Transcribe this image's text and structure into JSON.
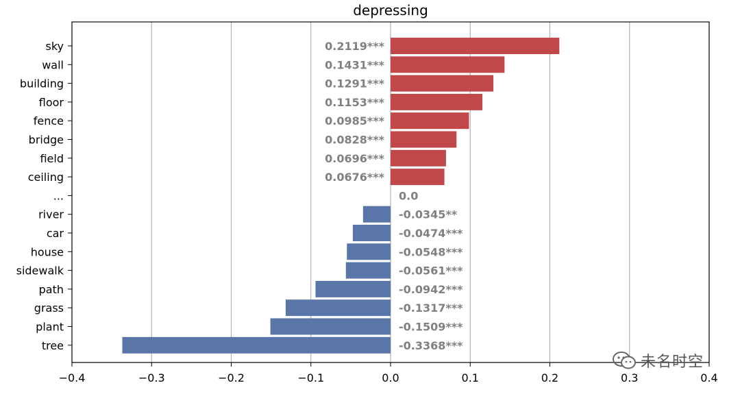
{
  "chart_data": {
    "type": "bar",
    "orientation": "horizontal",
    "title": "depressing",
    "xlabel": "",
    "ylabel": "",
    "xlim": [
      -0.4,
      0.4
    ],
    "xticks": [
      "−0.4",
      "−0.3",
      "−0.2",
      "−0.1",
      "0.0",
      "0.1",
      "0.2",
      "0.3",
      "0.4"
    ],
    "grid": "vertical",
    "categories": [
      "sky",
      "wall",
      "building",
      "floor",
      "fence",
      "bridge",
      "field",
      "ceiling",
      "...",
      "river",
      "car",
      "house",
      "sidewalk",
      "path",
      "grass",
      "plant",
      "tree"
    ],
    "values": [
      0.2119,
      0.1431,
      0.1291,
      0.1153,
      0.0985,
      0.0828,
      0.0696,
      0.0676,
      0.0,
      -0.0345,
      -0.0474,
      -0.0548,
      -0.0561,
      -0.0942,
      -0.1317,
      -0.1509,
      -0.3368
    ],
    "labels": [
      "0.2119***",
      "0.1431***",
      "0.1291***",
      "0.1153***",
      "0.0985***",
      "0.0828***",
      "0.0696***",
      "0.0676***",
      "0.0",
      "-0.0345**",
      "-0.0474***",
      "-0.0548***",
      "-0.0561***",
      "-0.0942***",
      "-0.1317***",
      "-0.1509***",
      "-0.3368***"
    ],
    "colors": {
      "positive": "#c0484b",
      "negative": "#5a76a8"
    }
  },
  "watermark": {
    "text": "未名时空",
    "icon": "wechat-icon"
  }
}
